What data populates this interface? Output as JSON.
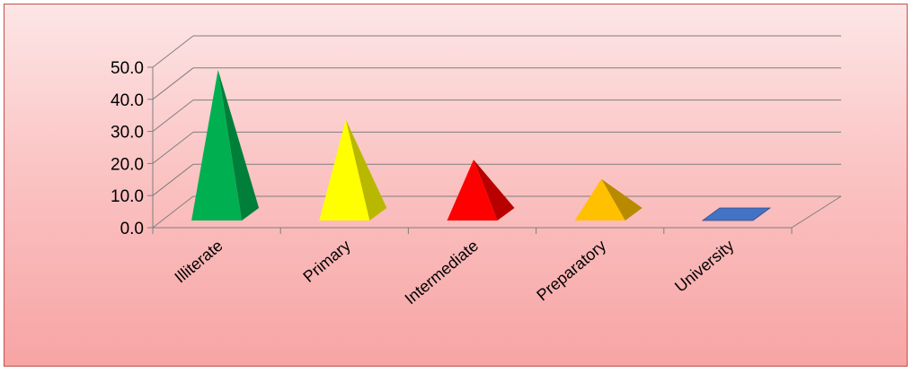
{
  "chart_data": {
    "type": "bar",
    "bar_shape": "pyramid",
    "projection": "3d",
    "categories": [
      "Illiterate",
      "Primary",
      "Intermediate",
      "Preparatory",
      "University"
    ],
    "values": [
      45.0,
      29.5,
      17.0,
      11.0,
      0.3
    ],
    "colors": [
      "#00b050",
      "#ffff00",
      "#ff0000",
      "#ffc000",
      "#4472c4"
    ],
    "yticks": [
      "0.0",
      "10.0",
      "20.0",
      "30.0",
      "40.0",
      "50.0"
    ],
    "ylim": [
      0,
      50
    ],
    "grid": true,
    "legend": "none",
    "background": [
      "#fde6e6",
      "#f7a4a4"
    ],
    "border_color": "#c0504d"
  }
}
